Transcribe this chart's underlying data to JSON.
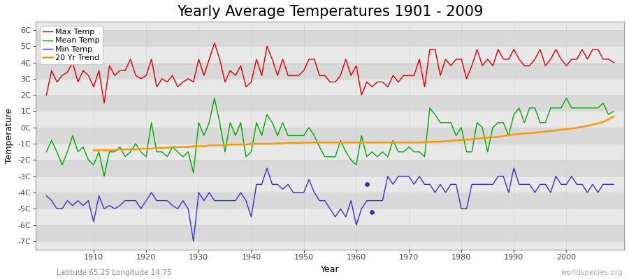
{
  "title": "Yearly Average Temperatures 1901 - 2009",
  "xlabel": "Year",
  "ylabel": "Temperature",
  "lat_lon_label": "Latitude 65.25 Longitude 14.75",
  "watermark": "worldspecies.org",
  "years": [
    1901,
    1902,
    1903,
    1904,
    1905,
    1906,
    1907,
    1908,
    1909,
    1910,
    1911,
    1912,
    1913,
    1914,
    1915,
    1916,
    1917,
    1918,
    1919,
    1920,
    1921,
    1922,
    1923,
    1924,
    1925,
    1926,
    1927,
    1928,
    1929,
    1930,
    1931,
    1932,
    1933,
    1934,
    1935,
    1936,
    1937,
    1938,
    1939,
    1940,
    1941,
    1942,
    1943,
    1944,
    1945,
    1946,
    1947,
    1948,
    1949,
    1950,
    1951,
    1952,
    1953,
    1954,
    1955,
    1956,
    1957,
    1958,
    1959,
    1960,
    1961,
    1962,
    1963,
    1964,
    1965,
    1966,
    1967,
    1968,
    1969,
    1970,
    1971,
    1972,
    1973,
    1974,
    1975,
    1976,
    1977,
    1978,
    1979,
    1980,
    1981,
    1982,
    1983,
    1984,
    1985,
    1986,
    1987,
    1988,
    1989,
    1990,
    1991,
    1992,
    1993,
    1994,
    1995,
    1996,
    1997,
    1998,
    1999,
    2000,
    2001,
    2002,
    2003,
    2004,
    2005,
    2006,
    2007,
    2008,
    2009
  ],
  "max_temp": [
    2.0,
    3.5,
    2.8,
    3.2,
    3.4,
    4.0,
    2.8,
    3.5,
    3.2,
    2.5,
    3.5,
    1.5,
    3.8,
    3.2,
    3.5,
    3.5,
    4.2,
    3.2,
    3.0,
    3.2,
    4.2,
    2.5,
    3.0,
    2.8,
    3.2,
    2.5,
    2.8,
    3.0,
    2.8,
    4.2,
    3.2,
    4.2,
    5.2,
    4.2,
    2.8,
    3.5,
    3.2,
    3.8,
    2.5,
    2.8,
    4.2,
    3.2,
    5.0,
    4.2,
    3.2,
    4.2,
    3.2,
    3.2,
    3.2,
    3.5,
    4.2,
    4.2,
    3.2,
    3.2,
    2.8,
    2.8,
    3.2,
    4.2,
    3.2,
    3.8,
    2.0,
    2.8,
    2.5,
    2.8,
    2.8,
    2.5,
    3.2,
    2.8,
    3.2,
    3.2,
    3.2,
    4.2,
    2.5,
    4.8,
    4.8,
    3.2,
    4.2,
    3.8,
    4.2,
    4.2,
    3.0,
    3.8,
    4.8,
    3.8,
    4.2,
    3.8,
    4.8,
    4.2,
    4.2,
    4.8,
    4.2,
    3.8,
    3.8,
    4.2,
    4.8,
    3.8,
    4.2,
    4.8,
    4.2,
    3.8,
    4.2,
    4.2,
    4.8,
    4.2,
    4.8,
    4.8,
    4.2,
    4.2,
    4.0
  ],
  "mean_temp": [
    -1.5,
    -0.8,
    -1.5,
    -2.3,
    -1.5,
    -0.5,
    -1.5,
    -1.2,
    -2.0,
    -2.3,
    -1.5,
    -3.0,
    -1.5,
    -1.5,
    -1.2,
    -1.8,
    -1.5,
    -1.0,
    -1.5,
    -1.8,
    0.3,
    -1.5,
    -1.5,
    -1.8,
    -1.2,
    -1.5,
    -1.8,
    -1.5,
    -2.8,
    0.3,
    -0.5,
    0.3,
    1.8,
    0.3,
    -1.5,
    0.3,
    -0.5,
    0.3,
    -1.8,
    -1.5,
    0.3,
    -0.5,
    0.8,
    0.3,
    -0.5,
    0.3,
    -0.5,
    -0.5,
    -0.5,
    -0.5,
    0.0,
    -0.5,
    -1.2,
    -1.8,
    -1.8,
    -1.8,
    -0.8,
    -1.5,
    -2.0,
    -2.3,
    -0.5,
    -1.8,
    -1.5,
    -1.8,
    -1.5,
    -1.8,
    -0.8,
    -1.5,
    -1.5,
    -1.2,
    -1.5,
    -1.5,
    -1.8,
    1.2,
    0.8,
    0.3,
    0.3,
    0.3,
    -0.5,
    0.0,
    -1.5,
    -1.5,
    0.3,
    0.0,
    -1.5,
    0.0,
    0.3,
    0.3,
    -0.5,
    0.8,
    1.2,
    0.3,
    1.2,
    1.2,
    0.3,
    0.3,
    1.2,
    1.2,
    1.2,
    1.8,
    1.2,
    1.2,
    1.2,
    1.2,
    1.2,
    1.2,
    1.5,
    0.8,
    1.0
  ],
  "min_temp": [
    -4.2,
    -4.5,
    -5.0,
    -5.0,
    -4.5,
    -4.8,
    -4.5,
    -4.8,
    -4.5,
    -5.8,
    -4.2,
    -5.0,
    -4.8,
    -5.0,
    -4.8,
    -4.5,
    -4.5,
    -4.5,
    -5.0,
    -4.5,
    -4.0,
    -4.5,
    -4.5,
    -4.5,
    -4.8,
    -5.0,
    -4.5,
    -5.0,
    -7.0,
    -4.0,
    -4.5,
    -4.0,
    -4.5,
    -4.5,
    -4.5,
    -4.5,
    -4.5,
    -4.0,
    -4.5,
    -5.5,
    -3.5,
    -3.5,
    -2.5,
    -3.5,
    -3.5,
    -3.8,
    -3.5,
    -4.0,
    -4.0,
    -4.0,
    -3.2,
    -4.0,
    -4.5,
    -4.5,
    -5.0,
    -5.5,
    -5.0,
    -5.5,
    -4.5,
    -6.0,
    -5.0,
    -4.5,
    -4.5,
    -4.5,
    -4.5,
    -3.0,
    -3.5,
    -3.0,
    -3.0,
    -3.0,
    -3.5,
    -3.0,
    -3.5,
    -3.5,
    -4.0,
    -3.5,
    -4.0,
    -3.5,
    -3.5,
    -5.0,
    -5.0,
    -3.5,
    -3.5,
    -3.5,
    -3.5,
    -3.5,
    -3.0,
    -3.0,
    -4.0,
    -2.5,
    -3.5,
    -3.5,
    -3.5,
    -4.0,
    -3.5,
    -3.5,
    -4.0,
    -3.0,
    -3.5,
    -3.5,
    -3.0,
    -3.5,
    -3.5,
    -4.0,
    -3.5,
    -4.0,
    -3.5,
    -3.5,
    -3.5
  ],
  "trend_years": [
    1910,
    1911,
    1912,
    1913,
    1914,
    1915,
    1916,
    1917,
    1918,
    1919,
    1920,
    1921,
    1922,
    1923,
    1924,
    1925,
    1926,
    1927,
    1928,
    1929,
    1930,
    1931,
    1932,
    1933,
    1934,
    1935,
    1936,
    1937,
    1938,
    1939,
    1940,
    1941,
    1942,
    1943,
    1944,
    1945,
    1946,
    1947,
    1948,
    1949,
    1950,
    1951,
    1952,
    1953,
    1954,
    1955,
    1956,
    1957,
    1958,
    1959,
    1960,
    1961,
    1962,
    1963,
    1964,
    1965,
    1966,
    1967,
    1968,
    1969,
    1970,
    1971,
    1972,
    1973,
    1974,
    1975,
    1976,
    1977,
    1978,
    1979,
    1980,
    1981,
    1982,
    1983,
    1984,
    1985,
    1986,
    1987,
    1988,
    1989,
    1990,
    1991,
    1992,
    1993,
    1994,
    1995,
    1996,
    1997,
    1998,
    1999,
    2000,
    2001,
    2002,
    2003,
    2004,
    2005,
    2006,
    2007,
    2008,
    2009
  ],
  "trend_values": [
    -1.4,
    -1.4,
    -1.4,
    -1.4,
    -1.4,
    -1.35,
    -1.35,
    -1.35,
    -1.35,
    -1.3,
    -1.3,
    -1.3,
    -1.25,
    -1.25,
    -1.25,
    -1.2,
    -1.2,
    -1.2,
    -1.2,
    -1.15,
    -1.15,
    -1.15,
    -1.1,
    -1.1,
    -1.1,
    -1.1,
    -1.05,
    -1.05,
    -1.05,
    -1.05,
    -1.0,
    -1.0,
    -1.0,
    -1.0,
    -1.0,
    -0.98,
    -0.98,
    -0.95,
    -0.95,
    -0.95,
    -0.93,
    -0.93,
    -0.92,
    -0.92,
    -0.92,
    -0.92,
    -0.92,
    -0.92,
    -0.92,
    -0.92,
    -0.92,
    -0.92,
    -0.92,
    -0.92,
    -0.92,
    -0.92,
    -0.92,
    -0.92,
    -0.92,
    -0.92,
    -0.92,
    -0.92,
    -0.92,
    -0.9,
    -0.88,
    -0.88,
    -0.87,
    -0.85,
    -0.82,
    -0.8,
    -0.78,
    -0.75,
    -0.72,
    -0.68,
    -0.65,
    -0.62,
    -0.6,
    -0.58,
    -0.52,
    -0.48,
    -0.44,
    -0.4,
    -0.37,
    -0.35,
    -0.32,
    -0.28,
    -0.25,
    -0.22,
    -0.18,
    -0.14,
    -0.1,
    -0.06,
    -0.02,
    0.05,
    0.1,
    0.18,
    0.25,
    0.35,
    0.5,
    0.68
  ],
  "scatter_years": [
    1962,
    1963
  ],
  "scatter_vals": [
    -3.5,
    -5.2
  ],
  "colors": {
    "max_temp": "#dd0000",
    "mean_temp": "#00aa00",
    "min_temp": "#3333cc",
    "trend": "#ff9900",
    "background": "#ffffff",
    "plot_bg": "#e8e8e8",
    "band_light": "#e8e8e8",
    "band_dark": "#d8d8d8",
    "grid": "#cccccc",
    "title": "#000000",
    "watermark": "#aaaaaa",
    "latlon": "#888888"
  },
  "ylim": [
    -7.5,
    6.5
  ],
  "yticks": [
    -7,
    -6,
    -5,
    -4,
    -3,
    -2,
    -1,
    0,
    1,
    2,
    3,
    4,
    5,
    6
  ],
  "ytick_labels": [
    "-7C",
    "-6C",
    "-5C",
    "-4C",
    "-3C",
    "-2C",
    "-1C",
    "0C",
    "1C",
    "2C",
    "3C",
    "4C",
    "5C",
    "6C"
  ],
  "xlim": [
    1899,
    2011
  ],
  "xticks": [
    1910,
    1920,
    1930,
    1940,
    1950,
    1960,
    1970,
    1980,
    1990,
    2000
  ],
  "title_fontsize": 15,
  "axis_label_fontsize": 9,
  "tick_fontsize": 8,
  "legend_fontsize": 8,
  "line_width": 1.0,
  "scatter_size": 15
}
